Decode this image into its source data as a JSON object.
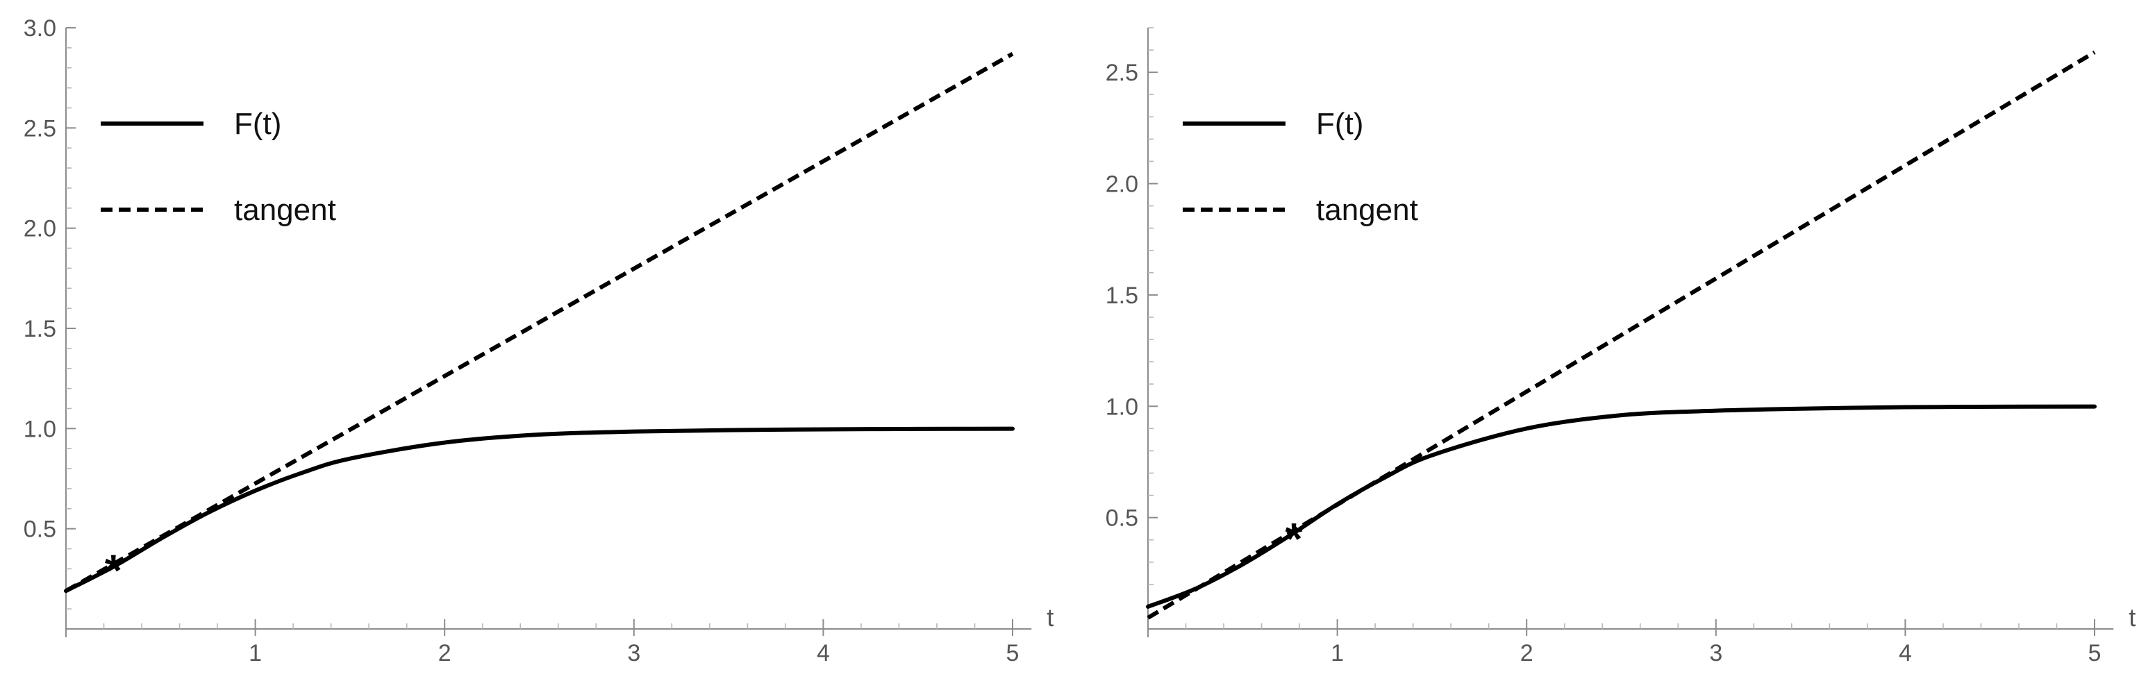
{
  "chart_data": [
    {
      "type": "line",
      "xlabel": "t",
      "ylabel": "",
      "xlim": [
        0,
        5.1
      ],
      "ylim": [
        0.0,
        3.0
      ],
      "x_ticks": [
        "1",
        "2",
        "3",
        "4",
        "5"
      ],
      "y_ticks": [
        "0.5",
        "1.0",
        "1.5",
        "2.0",
        "2.5",
        "3.0"
      ],
      "legend_position": "top-left",
      "series": [
        {
          "name": "F(t)",
          "style": "solid",
          "x": [
            0,
            0.25,
            0.5,
            0.75,
            1,
            1.25,
            1.5,
            2,
            2.5,
            3,
            3.5,
            4,
            4.5,
            5
          ],
          "y": [
            0.19,
            0.31,
            0.45,
            0.58,
            0.69,
            0.78,
            0.85,
            0.93,
            0.97,
            0.985,
            0.992,
            0.996,
            0.998,
            0.999
          ]
        },
        {
          "name": "tangent",
          "style": "dashed",
          "x": [
            0,
            5
          ],
          "y": [
            0.19,
            2.87
          ]
        }
      ],
      "marker": {
        "symbol": "*",
        "x": 0.25,
        "y": 0.32
      },
      "grid": false
    },
    {
      "type": "line",
      "xlabel": "t",
      "ylabel": "",
      "xlim": [
        0,
        5.1
      ],
      "ylim": [
        0.0,
        2.7
      ],
      "x_ticks": [
        "1",
        "2",
        "3",
        "4",
        "5"
      ],
      "y_ticks": [
        "0.5",
        "1.0",
        "1.5",
        "2.0",
        "2.5"
      ],
      "legend_position": "top-left",
      "series": [
        {
          "name": "F(t)",
          "style": "solid",
          "x": [
            0,
            0.25,
            0.5,
            0.75,
            1,
            1.25,
            1.5,
            2,
            2.5,
            3,
            3.5,
            4,
            4.5,
            5
          ],
          "y": [
            0.1,
            0.18,
            0.29,
            0.42,
            0.56,
            0.68,
            0.78,
            0.9,
            0.96,
            0.98,
            0.99,
            0.996,
            0.998,
            0.999
          ]
        },
        {
          "name": "tangent",
          "style": "dashed",
          "x": [
            0,
            5
          ],
          "y": [
            0.05,
            2.59
          ]
        }
      ],
      "marker": {
        "symbol": "*",
        "x": 0.77,
        "y": 0.43
      },
      "grid": false
    }
  ]
}
